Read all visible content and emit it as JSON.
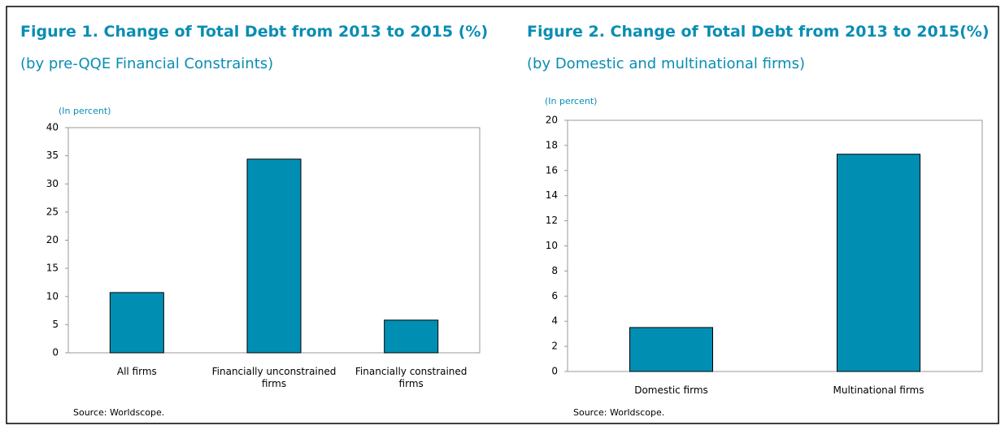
{
  "chart_data": [
    {
      "type": "bar",
      "title": "Figure 1. Change of Total Debt from 2013 to 2015 (%)",
      "subtitle": "(by pre-QQE Financial Constraints)",
      "y_label": "(In percent)",
      "source": "Source:  Worldscope.",
      "categories": [
        "All firms",
        "Financially unconstrained firms",
        "Financially constrained firms"
      ],
      "values": [
        10.7,
        34.4,
        5.8
      ],
      "color": "#008fb3",
      "ylim": [
        0,
        40
      ],
      "yticks": [
        0,
        5,
        10,
        15,
        20,
        25,
        30,
        35,
        40
      ]
    },
    {
      "type": "bar",
      "title": "Figure 2. Change of Total Debt from 2013 to 2015(%)",
      "subtitle": "(by Domestic and multinational firms)",
      "y_label": "(In percent)",
      "source": "Source:  Worldscope.",
      "categories": [
        "Domestic firms",
        "Multinational firms"
      ],
      "values": [
        3.5,
        17.3
      ],
      "color": "#008fb3",
      "ylim": [
        0,
        20
      ],
      "yticks": [
        0,
        2,
        4,
        6,
        8,
        10,
        12,
        14,
        16,
        18,
        20
      ]
    }
  ]
}
